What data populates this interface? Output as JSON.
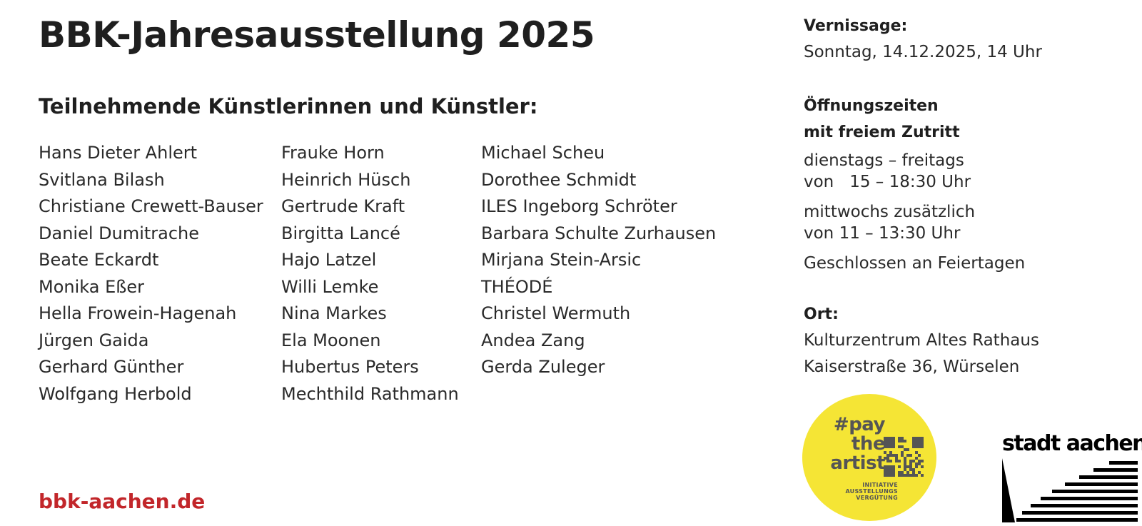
{
  "title": "BBK-Jahresausstellung 2025",
  "participants_heading": "Teilnehmende Künstlerinnen und Künstler:",
  "artists": {
    "column1": [
      "Hans Dieter Ahlert",
      "Svitlana Bilash",
      "Christiane Crewett-Bauser",
      "Daniel Dumitrache",
      "Beate Eckardt",
      "Monika Eßer",
      "Hella Frowein-Hagenah",
      "Jürgen Gaida",
      "Gerhard Günther",
      "Wolfgang Herbold"
    ],
    "column2": [
      "Frauke Horn",
      "Heinrich Hüsch",
      "Gertrude Kraft",
      "Birgitta Lancé",
      "Hajo Latzel",
      "Willi Lemke",
      "Nina Markes",
      "Ela Moonen",
      "Hubertus Peters",
      "Mechthild Rathmann"
    ],
    "column3": [
      "Michael Scheu",
      "Dorothee Schmidt",
      "ILES Ingeborg Schröter",
      "Barbara Schulte Zurhausen",
      "Mirjana Stein-Arsic",
      "THÉODÉ",
      "Christel Wermuth",
      "Andea Zang",
      "Gerda Zuleger"
    ]
  },
  "website": "bbk-aachen.de",
  "vernissage": {
    "heading": "Vernissage:",
    "date": "Sonntag, 14.12.2025, 14 Uhr"
  },
  "opening_hours": {
    "heading_line1": "Öffnungszeiten",
    "heading_line2": "mit freiem Zutritt",
    "days1": "dienstags – freitags",
    "times1": "von   15 – 18:30 Uhr",
    "days2": "mittwochs zusätzlich",
    "times2": "von 11 – 13:30 Uhr",
    "closed": "Geschlossen an Feiertagen"
  },
  "location": {
    "heading": "Ort:",
    "venue": "Kulturzentrum Altes Rathaus",
    "address": "Kaiserstraße 36, Würselen"
  },
  "pay_the_artist": {
    "line1": "#pay",
    "line2": "the",
    "line3": "artist",
    "sub1": "INITIATIVE",
    "sub2": "AUSSTELLUNGS",
    "sub3": "VERGÜTUNG",
    "badge_color": "#f5e535"
  },
  "stadt_aachen_logo": "stadt aachen",
  "colors": {
    "text": "#222222",
    "website": "#c2262a"
  }
}
